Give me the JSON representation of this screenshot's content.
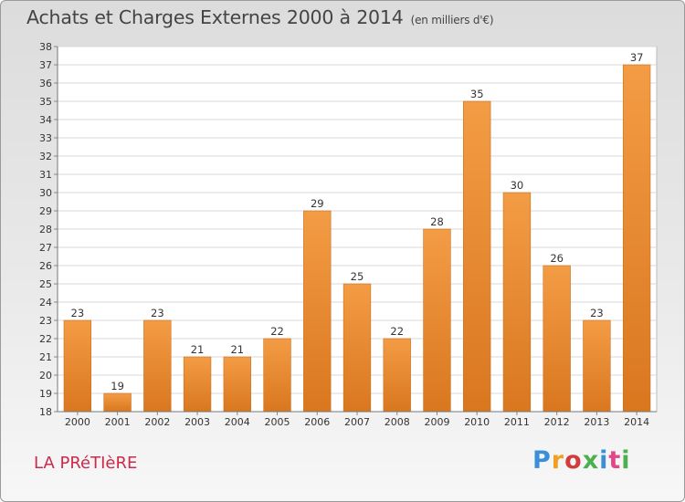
{
  "chart_data": {
    "type": "bar",
    "title": "Achats et Charges Externes 2000 à 2014",
    "subtitle": "(en milliers d'€)",
    "categories": [
      "2000",
      "2001",
      "2002",
      "2003",
      "2004",
      "2005",
      "2006",
      "2007",
      "2008",
      "2009",
      "2010",
      "2011",
      "2012",
      "2013",
      "2014"
    ],
    "values": [
      23,
      19,
      23,
      21,
      21,
      22,
      29,
      25,
      22,
      28,
      35,
      30,
      26,
      23,
      37
    ],
    "ylim": [
      18,
      38
    ],
    "yticks": [
      18,
      19,
      20,
      21,
      22,
      23,
      24,
      25,
      26,
      27,
      28,
      29,
      30,
      31,
      32,
      33,
      34,
      35,
      36,
      37,
      38
    ],
    "grid": true,
    "bar_color": "#f39c45",
    "bar_color_dark": "#d9771f"
  },
  "place_name": "LA PRéTIèRE",
  "logo_text": "Proxiti"
}
